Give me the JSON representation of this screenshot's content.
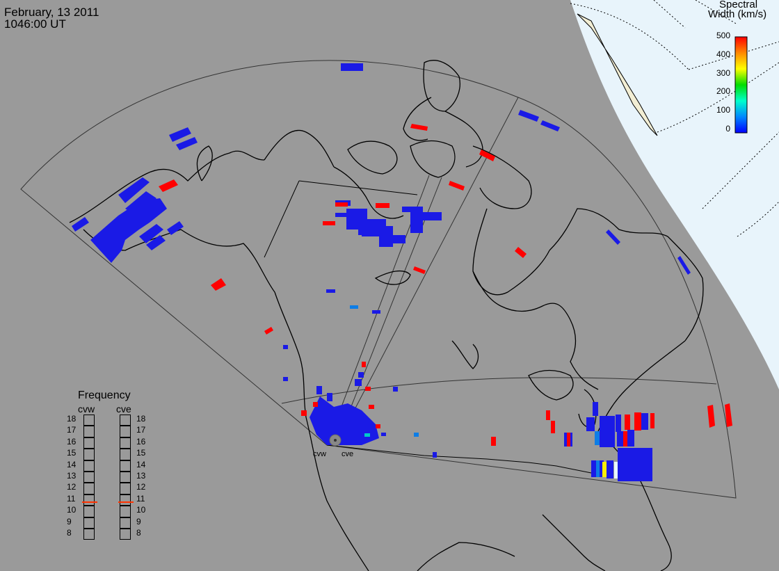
{
  "header": {
    "date": "February, 13 2011",
    "time": "1046:00 UT"
  },
  "colorbar": {
    "title_line1": "Spectral",
    "title_line2": "Width (km/s)",
    "ticks": [
      "500",
      "400",
      "300",
      "200",
      "100",
      "0"
    ],
    "gradient": [
      "#ff0000",
      "#ff8800",
      "#ffff00",
      "#00dd00",
      "#00ffcc",
      "#0088ff",
      "#0000ff"
    ]
  },
  "frequency_panel": {
    "title": "Frequency",
    "radars": [
      "cvw",
      "cve"
    ],
    "levels": [
      "18",
      "17",
      "16",
      "15",
      "14",
      "13",
      "12",
      "11",
      "10",
      "9",
      "8"
    ],
    "cvw_mhz": 10.8,
    "cve_mhz": 10.8
  },
  "radars": {
    "west_label": "cvw",
    "east_label": "cve"
  },
  "colors": {
    "background": "#9a9a9a",
    "ocean_polar": "#e8f4fb",
    "sunlit_land": "#f3efd6",
    "scatter_low": "#1a1ae6",
    "scatter_high": "#ff0000",
    "scatter_mid": "#0d7de6",
    "frequency_marker": "#ff3300"
  }
}
